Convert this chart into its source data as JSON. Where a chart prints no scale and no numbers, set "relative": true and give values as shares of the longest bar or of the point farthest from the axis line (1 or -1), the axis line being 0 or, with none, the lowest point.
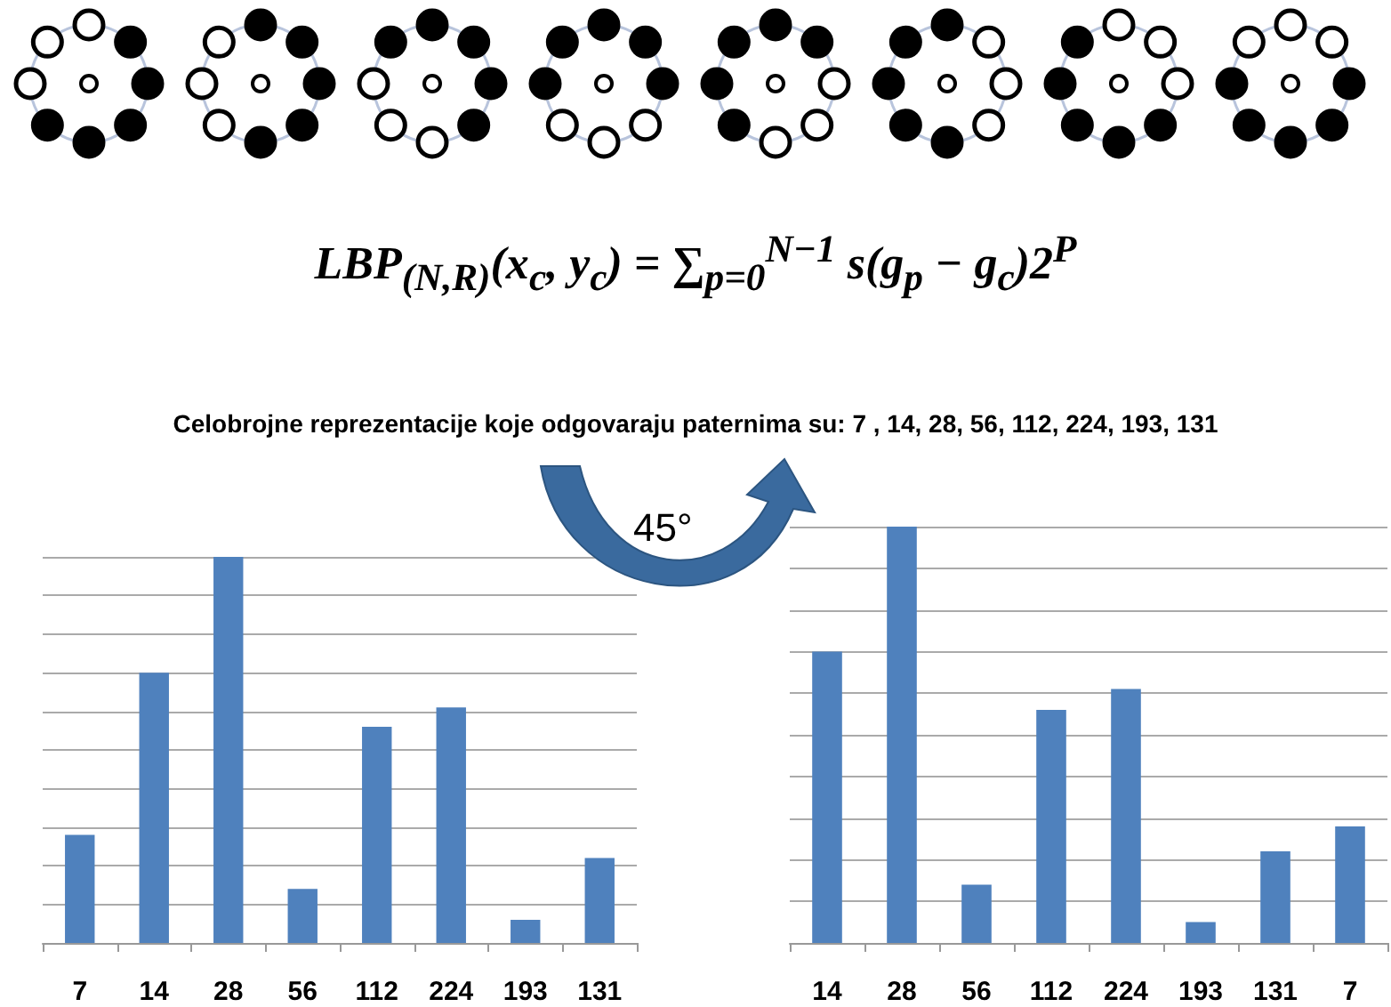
{
  "chart_data": [
    {
      "type": "bar",
      "relative": true,
      "grid": "y",
      "categories": [
        "7",
        "14",
        "28",
        "56",
        "112",
        "224",
        "193",
        "131"
      ],
      "values": [
        0.28,
        0.7,
        1,
        0.14,
        0.56,
        0.61,
        0.06,
        0.22
      ],
      "color": "#4f81bd",
      "annotations": [
        "LBP$_{(N,R)}$(x$_{c}$, y$_{c}$) = ∑$_{p=0}$$^{N−1}$ s(g$_{p}$ − g$_{c}$)2$^{P}$",
        "Celobrojne reprezentacije koje odgovaraju paternima su: 7 , 14, 28, 56, 112, 224, 193, 131"
      ]
    },
    {
      "type": "bar",
      "relative": true,
      "grid": "y",
      "categories": [
        "14",
        "28",
        "56",
        "112",
        "224",
        "193",
        "131",
        "7"
      ],
      "values": [
        0.7,
        1,
        0.14,
        0.56,
        0.61,
        0.05,
        0.22,
        0.28
      ],
      "color": "#4f81bd",
      "annotations": [
        "45°"
      ]
    }
  ]
}
